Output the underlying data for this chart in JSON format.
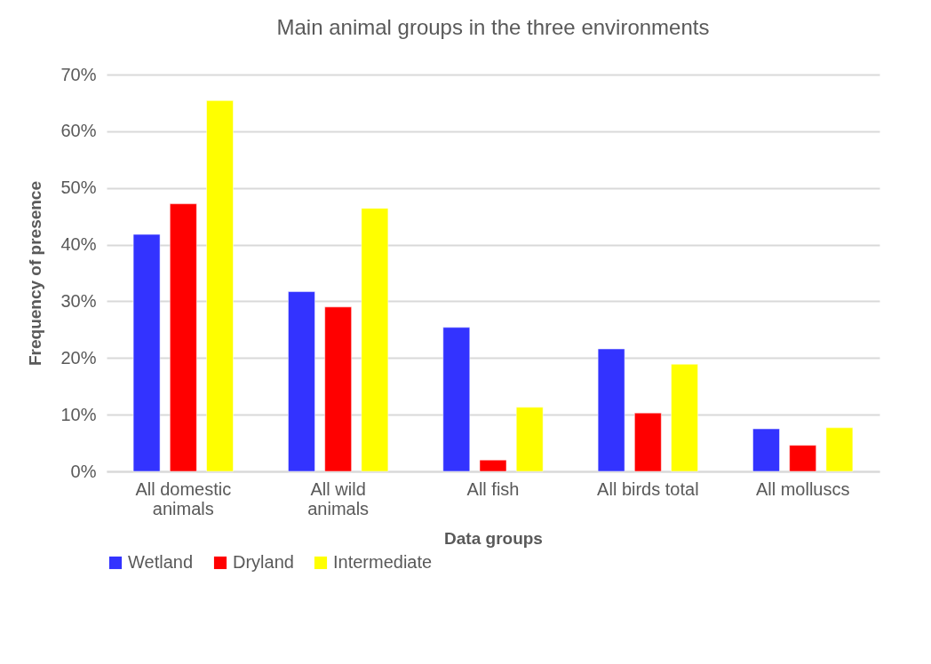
{
  "chart_data": {
    "type": "bar",
    "title": "Main animal groups in the three environments",
    "xlabel": "Data groups",
    "ylabel": "Frequency of presence",
    "categories": [
      "All domestic animals",
      "All wild animals",
      "All fish",
      "All birds total",
      "All molluscs"
    ],
    "series": [
      {
        "name": "Wetland",
        "color": "#3333ff",
        "values": [
          41.8,
          31.7,
          25.4,
          21.6,
          7.5
        ]
      },
      {
        "name": "Dryland",
        "color": "#ff0000",
        "values": [
          47.2,
          29.0,
          2.0,
          10.3,
          4.6
        ]
      },
      {
        "name": "Intermediate",
        "color": "#ffff00",
        "values": [
          65.4,
          46.4,
          11.3,
          18.9,
          7.7
        ]
      }
    ],
    "ylim": [
      0,
      70
    ],
    "yticks": [
      {
        "value": 0,
        "label": "0%"
      },
      {
        "value": 10,
        "label": "10%"
      },
      {
        "value": 20,
        "label": "20%"
      },
      {
        "value": 30,
        "label": "30%"
      },
      {
        "value": 40,
        "label": "40%"
      },
      {
        "value": 50,
        "label": "50%"
      },
      {
        "value": 60,
        "label": "60%"
      },
      {
        "value": 70,
        "label": "70%"
      }
    ],
    "grid": "y",
    "legend": "bottom"
  }
}
